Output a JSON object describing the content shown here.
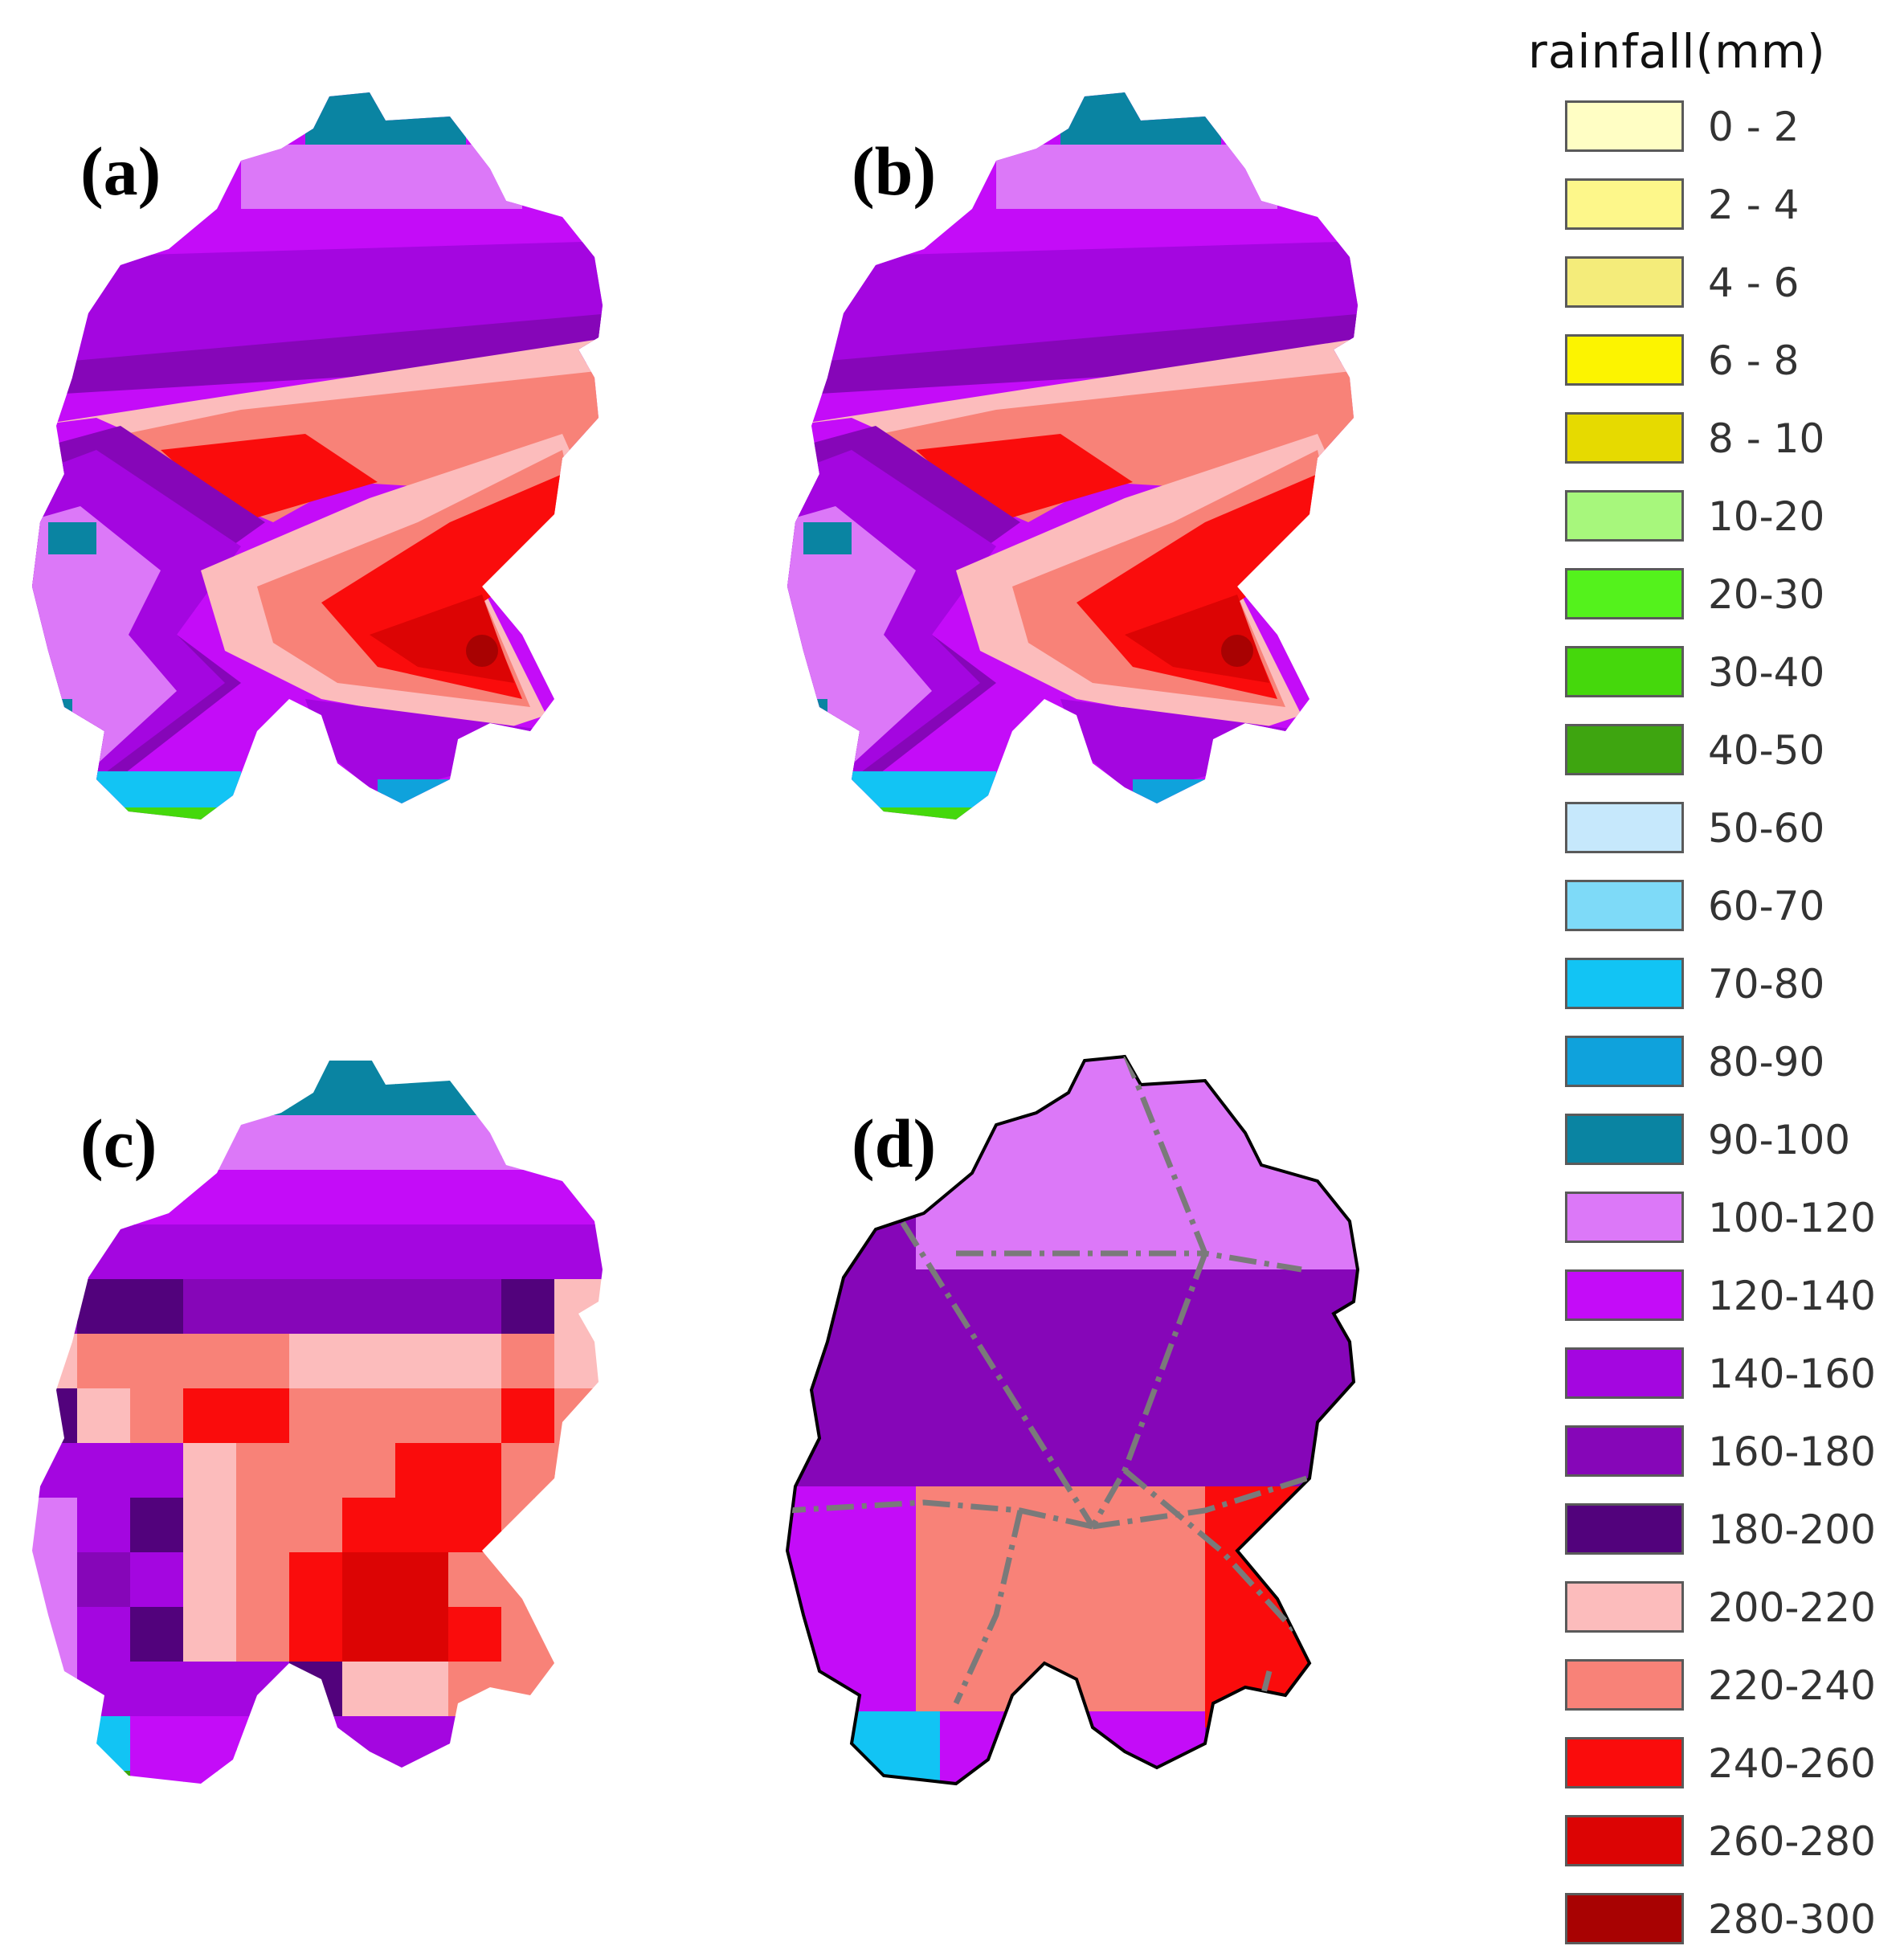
{
  "legend": {
    "title": "rainfall(mm)",
    "items": [
      {
        "label": "0 - 2",
        "color": "#fffec4"
      },
      {
        "label": "2 - 4",
        "color": "#fdf78a"
      },
      {
        "label": "4 - 6",
        "color": "#f4ec7a"
      },
      {
        "label": "6 - 8",
        "color": "#fcf400"
      },
      {
        "label": "8 - 10",
        "color": "#e6da00"
      },
      {
        "label": "10-20",
        "color": "#a7f77c"
      },
      {
        "label": "20-30",
        "color": "#54f21c"
      },
      {
        "label": "30-40",
        "color": "#45d80c"
      },
      {
        "label": "40-50",
        "color": "#3ea510"
      },
      {
        "label": "50-60",
        "color": "#c6e8fc"
      },
      {
        "label": "60-70",
        "color": "#7edaf8"
      },
      {
        "label": "70-80",
        "color": "#12c4f4"
      },
      {
        "label": "80-90",
        "color": "#0fa2dc"
      },
      {
        "label": "90-100",
        "color": "#0a84a2"
      },
      {
        "label": "100-120",
        "color": "#dc78f8"
      },
      {
        "label": "120-140",
        "color": "#c40cf8"
      },
      {
        "label": "140-160",
        "color": "#a406e0"
      },
      {
        "label": "160-180",
        "color": "#8606b8"
      },
      {
        "label": "180-200",
        "color": "#52027c"
      },
      {
        "label": "200-220",
        "color": "#fcbcbc"
      },
      {
        "label": "220-240",
        "color": "#f88278"
      },
      {
        "label": "240-260",
        "color": "#fa0c0c"
      },
      {
        "label": "260-280",
        "color": "#dc0404"
      },
      {
        "label": "280-300",
        "color": "#a80202"
      }
    ]
  },
  "panels": [
    {
      "id": "a",
      "label": "(a)"
    },
    {
      "id": "b",
      "label": "(b)"
    },
    {
      "id": "c",
      "label": "(c)"
    },
    {
      "id": "d",
      "label": "(d)"
    }
  ]
}
